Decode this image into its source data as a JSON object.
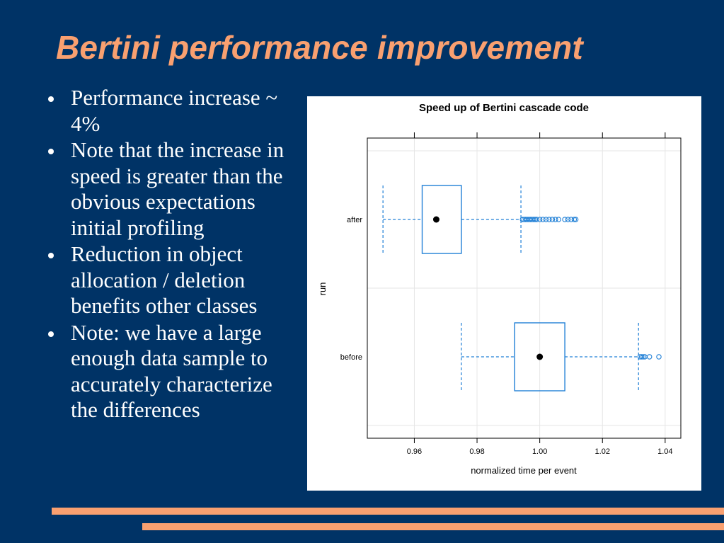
{
  "slide": {
    "title": "Bertini performance improvement",
    "bullets": [
      "Performance increase ~ 4%",
      "Note that the increase in speed is greater than the obvious expectations initial profiling",
      "Reduction in object allocation / deletion benefits other classes",
      "Note: we have a large enough data sample to accurately characterize the differences"
    ]
  },
  "colors": {
    "background": "#003366",
    "title": "#f9a070",
    "accent_rule": "#f9a070",
    "box": "#1f7fd6",
    "median": "#000000"
  },
  "chart_data": {
    "type": "boxplot",
    "title": "Speed up of Bertini cascade code",
    "xlabel": "normalized time per event",
    "ylabel": "run",
    "xlim": [
      0.945,
      1.045
    ],
    "xticks": [
      0.96,
      0.98,
      1.0,
      1.02,
      1.04
    ],
    "xtick_labels": [
      "0.96",
      "0.98",
      "1.00",
      "1.02",
      "1.04"
    ],
    "grid": true,
    "categories": [
      "after",
      "before"
    ],
    "boxes": [
      {
        "label": "after",
        "whisker_low": 0.95,
        "q1": 0.9625,
        "median": 0.967,
        "q3": 0.975,
        "whisker_high": 0.994,
        "outliers": [
          0.9945,
          0.995,
          0.9955,
          0.996,
          0.9965,
          0.997,
          0.9975,
          0.998,
          0.9985,
          0.999,
          1.0,
          1.001,
          1.002,
          1.003,
          1.004,
          1.005,
          1.006,
          1.008,
          1.009,
          1.01,
          1.011,
          1.0115
        ]
      },
      {
        "label": "before",
        "whisker_low": 0.975,
        "q1": 0.992,
        "median": 1.0,
        "q3": 1.008,
        "whisker_high": 1.0315,
        "outliers": [
          1.032,
          1.0325,
          1.033,
          1.0335,
          1.035,
          1.038
        ]
      }
    ]
  }
}
